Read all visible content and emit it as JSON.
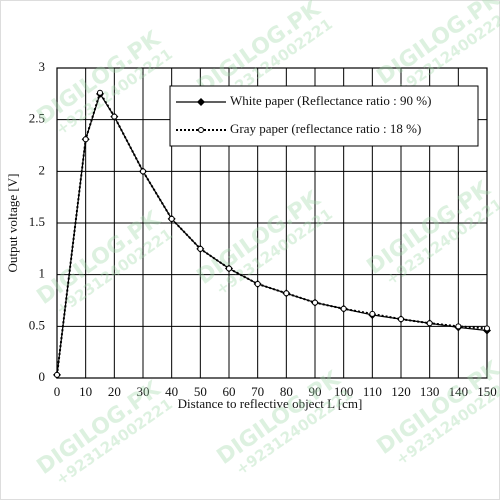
{
  "chart_data": {
    "type": "line",
    "x_label": "Distance to reflective object L [cm]",
    "y_label": "Output voltage [V]",
    "xlim": [
      0,
      150
    ],
    "ylim": [
      0,
      3
    ],
    "xticks": [
      0,
      10,
      20,
      30,
      40,
      50,
      60,
      70,
      80,
      90,
      100,
      110,
      120,
      130,
      140,
      150
    ],
    "yticks": [
      0,
      0.5,
      1,
      1.5,
      2,
      2.5,
      3
    ],
    "grid": true,
    "legend": "upper right",
    "watermark": [
      "DIGILOG.PK",
      "+923124002221"
    ],
    "series": [
      {
        "name": "White paper (Reflectance ratio : 90 %)",
        "color": "#000000",
        "style": "solid",
        "marker": "diamond",
        "x": [
          0,
          10,
          15,
          20,
          30,
          40,
          50,
          60,
          70,
          80,
          90,
          100,
          110,
          120,
          130,
          140,
          150
        ],
        "values": [
          0.03,
          2.31,
          2.75,
          2.53,
          2.0,
          1.54,
          1.25,
          1.06,
          0.91,
          0.82,
          0.73,
          0.67,
          0.61,
          0.57,
          0.53,
          0.49,
          0.46
        ]
      },
      {
        "name": "Gray paper (reflectance ratio : 18 %)",
        "color": "#000000",
        "style": "dotted",
        "marker": "circle",
        "x": [
          0,
          10,
          15,
          20,
          30,
          40,
          50,
          60,
          70,
          80,
          90,
          100,
          110,
          120,
          130,
          140,
          150
        ],
        "values": [
          0.03,
          2.31,
          2.76,
          2.53,
          2.0,
          1.54,
          1.25,
          1.06,
          0.91,
          0.82,
          0.73,
          0.67,
          0.62,
          0.57,
          0.53,
          0.5,
          0.48
        ]
      }
    ]
  }
}
